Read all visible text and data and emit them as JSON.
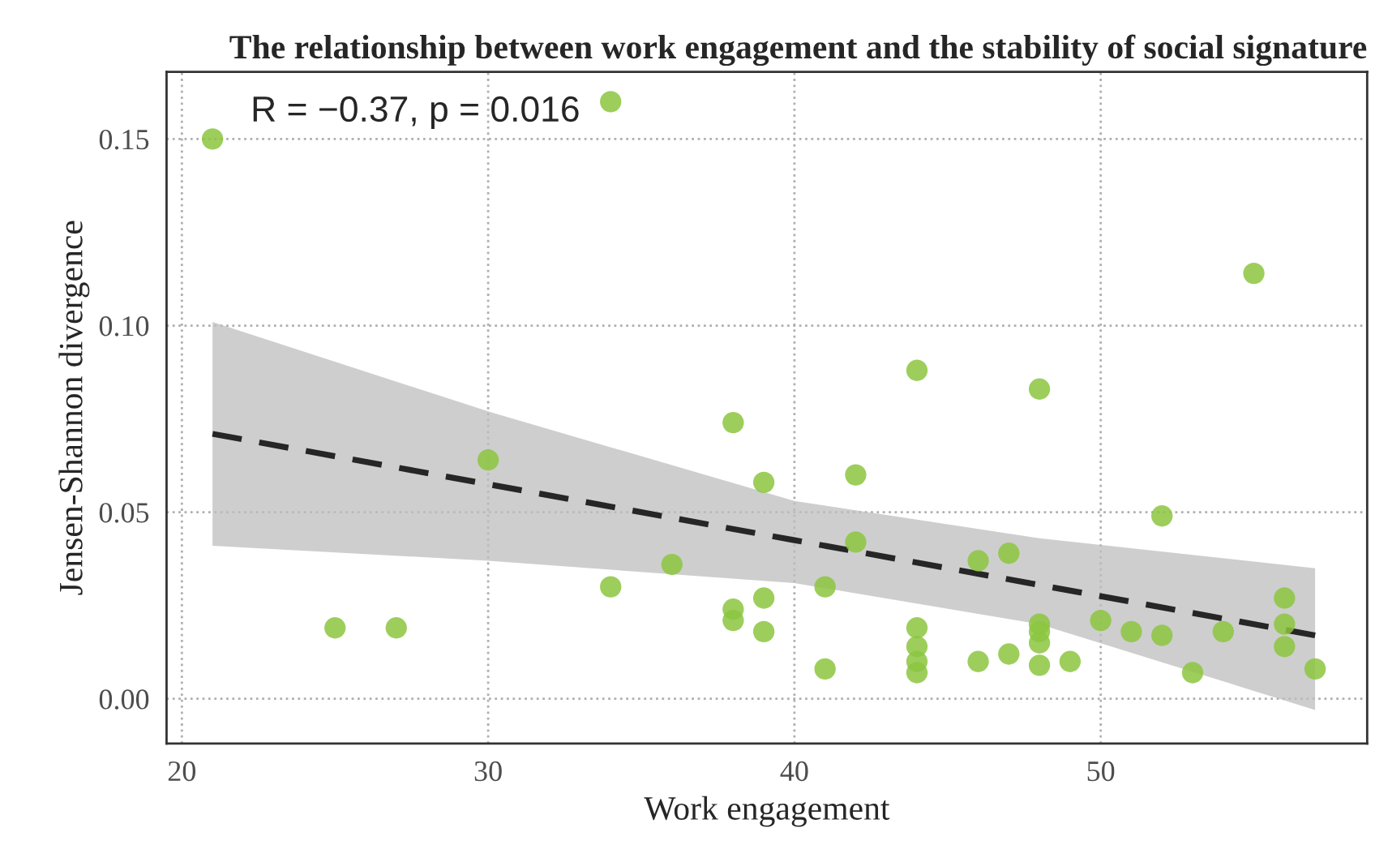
{
  "chart_data": {
    "type": "scatter",
    "title": "The relationship between work engagement and the stability of social signature",
    "xlabel": "Work engagement",
    "ylabel": "Jensen-Shannon divergence",
    "annotations": [
      "R = −0.37, p = 0.016"
    ],
    "xlim": [
      19.5,
      58.7
    ],
    "ylim": [
      -0.012,
      0.168
    ],
    "xticks": [
      20,
      30,
      40,
      50
    ],
    "yticks": [
      {
        "value": 0,
        "label": "0.00"
      },
      {
        "value": 0.05,
        "label": "0.05"
      },
      {
        "value": 0.1,
        "label": "0.10"
      },
      {
        "value": 0.15,
        "label": "0.15"
      }
    ],
    "grid": true,
    "legend": false,
    "series": [
      {
        "color": "#8cc63f",
        "marker": "circle",
        "x": [
          21,
          34,
          25,
          27,
          30,
          34,
          36,
          38,
          38,
          38,
          39,
          39,
          39,
          41,
          41,
          42,
          42,
          44,
          44,
          44,
          44,
          44,
          46,
          46,
          47,
          47,
          48,
          48,
          48,
          48,
          48,
          49,
          50,
          51,
          52,
          52,
          53,
          54,
          55,
          56,
          56,
          56,
          57
        ],
        "values": [
          0.15,
          0.16,
          0.019,
          0.019,
          0.064,
          0.03,
          0.036,
          0.074,
          0.024,
          0.021,
          0.058,
          0.027,
          0.018,
          0.03,
          0.008,
          0.06,
          0.042,
          0.088,
          0.019,
          0.014,
          0.01,
          0.007,
          0.037,
          0.01,
          0.039,
          0.012,
          0.083,
          0.02,
          0.018,
          0.015,
          0.009,
          0.01,
          0.021,
          0.018,
          0.049,
          0.017,
          0.007,
          0.018,
          0.114,
          0.027,
          0.02,
          0.014,
          0.008
        ]
      },
      {
        "type": "line",
        "color": "#262626",
        "line_style": "dashed",
        "marker": "none",
        "x": [
          21,
          30,
          40,
          48,
          57
        ],
        "values": [
          0.071,
          0.0575,
          0.0425,
          0.0305,
          0.017
        ],
        "lower": [
          0.041,
          0.037,
          0.031,
          0.02,
          -0.003
        ],
        "upper": [
          0.101,
          0.077,
          0.053,
          0.043,
          0.035
        ]
      }
    ]
  }
}
